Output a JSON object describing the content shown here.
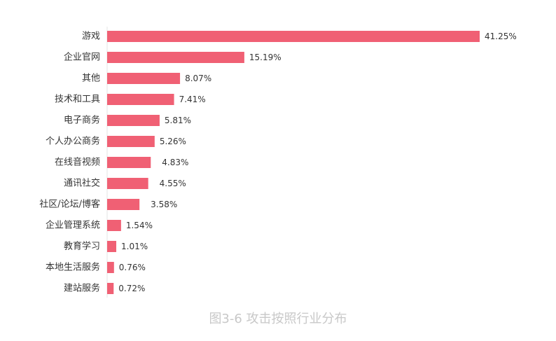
{
  "chart_data": {
    "type": "bar",
    "orientation": "horizontal",
    "categories": [
      "游戏",
      "企业官网",
      "其他",
      "技术和工具",
      "电子商务",
      "个人办公商务",
      "在线音视频",
      "通讯社交",
      "社区/论坛/博客",
      "企业管理系统",
      "教育学习",
      "本地生活服务",
      "建站服务"
    ],
    "values": [
      41.25,
      15.19,
      8.07,
      7.41,
      5.81,
      5.26,
      4.83,
      4.55,
      3.58,
      1.54,
      1.01,
      0.76,
      0.72
    ],
    "value_labels": [
      "41.25%",
      "15.19%",
      "8.07%",
      "7.41%",
      "5.81%",
      "5.26%",
      "4.83%",
      "4.55%",
      "3.58%",
      "1.54%",
      "1.01%",
      "0.76%",
      "0.72%"
    ],
    "xlim": [
      0,
      41.25
    ],
    "grid": false,
    "bar_color": "#f06074",
    "title": "图3-6  攻击按照行业分布"
  }
}
